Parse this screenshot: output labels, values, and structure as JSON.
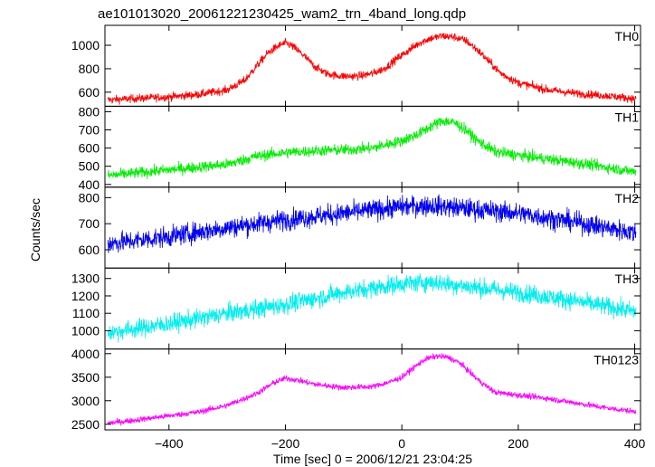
{
  "chart_data": {
    "type": "line",
    "title": "ae101013020_20061221230425_wam2_trn_4band_long.qdp",
    "xlabel": "Time [sec] 0 = 2006/12/21 23:04:25",
    "ylabel": "Counts/sec",
    "xlim": [
      -510,
      410
    ],
    "x_ticks": [
      -400,
      -200,
      0,
      200,
      400
    ],
    "x_tick_labels": [
      "−400",
      "−200",
      "0",
      "200",
      "400"
    ],
    "panels": [
      {
        "name": "TH0",
        "color": "#ff0000",
        "ylim": [
          480,
          1170
        ],
        "y_ticks": [
          600,
          800,
          1000
        ],
        "y_tick_labels": [
          "600",
          "800",
          "1000"
        ],
        "x": [
          -500,
          -450,
          -400,
          -350,
          -300,
          -270,
          -250,
          -230,
          -210,
          -200,
          -190,
          -170,
          -150,
          -130,
          -110,
          -90,
          -70,
          -50,
          -30,
          -10,
          10,
          30,
          50,
          70,
          90,
          110,
          130,
          150,
          170,
          200,
          250,
          300,
          350,
          400
        ],
        "values": [
          535,
          548,
          560,
          580,
          620,
          700,
          820,
          935,
          1000,
          1020,
          1000,
          920,
          820,
          760,
          740,
          735,
          740,
          760,
          800,
          880,
          950,
          1020,
          1060,
          1080,
          1070,
          1040,
          960,
          860,
          760,
          680,
          620,
          590,
          570,
          545
        ],
        "noise": 25
      },
      {
        "name": "TH1",
        "color": "#00ee00",
        "ylim": [
          385,
          830
        ],
        "y_ticks": [
          400,
          500,
          600,
          700,
          800
        ],
        "y_tick_labels": [
          "400",
          "500",
          "600",
          "700",
          "800"
        ],
        "x": [
          -500,
          -400,
          -300,
          -250,
          -200,
          -150,
          -100,
          -50,
          0,
          30,
          50,
          70,
          90,
          110,
          130,
          160,
          200,
          300,
          400
        ],
        "values": [
          450,
          480,
          510,
          555,
          575,
          585,
          590,
          600,
          640,
          680,
          720,
          750,
          740,
          700,
          640,
          580,
          560,
          520,
          470
        ],
        "noise": 22
      },
      {
        "name": "TH2",
        "color": "#0000ee",
        "ylim": [
          530,
          840
        ],
        "y_ticks": [
          600,
          700,
          800
        ],
        "y_tick_labels": [
          "600",
          "700",
          "800"
        ],
        "x": [
          -500,
          -400,
          -300,
          -200,
          -100,
          0,
          50,
          100,
          200,
          300,
          400
        ],
        "values": [
          625,
          650,
          685,
          715,
          740,
          765,
          770,
          760,
          740,
          705,
          665
        ],
        "noise": 28
      },
      {
        "name": "TH3",
        "color": "#00eeee",
        "ylim": [
          895,
          1360
        ],
        "y_ticks": [
          1000,
          1100,
          1200,
          1300
        ],
        "y_tick_labels": [
          "1000",
          "1100",
          "1200",
          "1300"
        ],
        "x": [
          -500,
          -400,
          -300,
          -200,
          -100,
          0,
          50,
          100,
          200,
          300,
          400
        ],
        "values": [
          990,
          1040,
          1100,
          1150,
          1220,
          1270,
          1280,
          1260,
          1220,
          1170,
          1110
        ],
        "noise": 38
      },
      {
        "name": "TH0123",
        "color": "#ff00ff",
        "ylim": [
          2380,
          4100
        ],
        "y_ticks": [
          2500,
          3000,
          3500,
          4000
        ],
        "y_tick_labels": [
          "2500",
          "3000",
          "3500",
          "4000"
        ],
        "x": [
          -500,
          -450,
          -400,
          -350,
          -300,
          -250,
          -220,
          -200,
          -180,
          -150,
          -100,
          -50,
          -20,
          0,
          20,
          40,
          60,
          80,
          100,
          130,
          160,
          200,
          250,
          300,
          350,
          400
        ],
        "values": [
          2530,
          2600,
          2680,
          2760,
          2900,
          3150,
          3380,
          3480,
          3440,
          3350,
          3280,
          3300,
          3400,
          3500,
          3700,
          3880,
          3950,
          3920,
          3800,
          3450,
          3180,
          3120,
          3050,
          2950,
          2850,
          2770
        ],
        "noise": 45
      }
    ]
  }
}
